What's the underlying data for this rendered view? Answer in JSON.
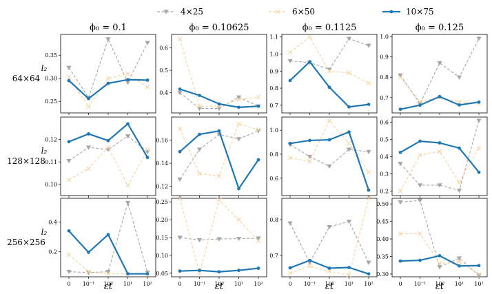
{
  "chart_data": {
    "type": "line",
    "layout": "3x4 grid",
    "legend": {
      "placement": "top-center",
      "entries": [
        {
          "name": "4×25",
          "color": "#a6a6a6",
          "marker": "triangle-down",
          "linestyle": "dashed"
        },
        {
          "name": "6×50",
          "color": "#f5d49e",
          "marker": "x",
          "linestyle": "dashed"
        },
        {
          "name": "10×75",
          "color": "#1f77b4",
          "marker": "circle",
          "linestyle": "solid"
        }
      ]
    },
    "col_titles": [
      "ϕ₀ = 0.1",
      "ϕ₀ = 0.10625",
      "ϕ₀ = 0.1125",
      "ϕ₀ = 0.125"
    ],
    "row_labels": [
      {
        "metric": "l₂",
        "grid": "64×64"
      },
      {
        "metric": "l₂",
        "grid": "128×128"
      },
      {
        "metric": "l₂",
        "grid": "256×256"
      }
    ],
    "xlabel": "εt",
    "x_categories": [
      "0",
      "10⁻¹",
      "10⁰",
      "10¹",
      "10²"
    ],
    "panels": [
      {
        "row": 0,
        "col": 0,
        "ylim": [
          0.225,
          0.395
        ],
        "yticks": [
          "0.25",
          "0.30",
          "0.35"
        ],
        "ytick_values": [
          0.25,
          0.3,
          0.35
        ],
        "series": {
          "4×25": [
            0.323,
            0.258,
            0.385,
            0.291,
            0.377
          ],
          "6×50": [
            0.303,
            0.238,
            0.3,
            0.31,
            0.281
          ],
          "10×75": [
            0.295,
            0.256,
            0.289,
            0.297,
            0.296
          ]
        }
      },
      {
        "row": 0,
        "col": 1,
        "ylim": [
          0.31,
          0.66
        ],
        "yticks": [
          "0.4",
          "0.5",
          "0.6"
        ],
        "ytick_values": [
          0.4,
          0.5,
          0.6
        ],
        "series": {
          "4×25": [
            0.4,
            0.33,
            0.33,
            0.38,
            0.34
          ],
          "6×50": [
            0.64,
            0.34,
            0.34,
            0.37,
            0.38
          ],
          "10×75": [
            0.416,
            0.388,
            0.35,
            0.335,
            0.34
          ]
        }
      },
      {
        "row": 0,
        "col": 2,
        "ylim": [
          0.655,
          1.115
        ],
        "yticks": [
          "0.7",
          "0.8",
          "0.9",
          "1.0",
          "1.1"
        ],
        "ytick_values": [
          0.7,
          0.8,
          0.9,
          1.0,
          1.1
        ],
        "series": {
          "4×25": [
            0.96,
            0.95,
            0.91,
            1.09,
            1.05
          ],
          "6×50": [
            1.01,
            1.1,
            0.9,
            0.89,
            0.83
          ],
          "10×75": [
            0.845,
            0.955,
            0.805,
            0.69,
            0.705
          ]
        }
      },
      {
        "row": 0,
        "col": 3,
        "ylim": [
          0.625,
          1.01
        ],
        "yticks": [
          "0.7",
          "0.8",
          "0.9",
          "1.0"
        ],
        "ytick_values": [
          0.7,
          0.8,
          0.9,
          1.0
        ],
        "series": {
          "4×25": [
            0.81,
            0.67,
            0.87,
            0.8,
            0.99
          ],
          "6×50": [
            0.8,
            0.68,
            0.7,
            0.68,
            0.67
          ],
          "10×75": [
            0.643,
            0.663,
            0.705,
            0.664,
            0.678
          ]
        }
      },
      {
        "row": 1,
        "col": 0,
        "ylim": [
          0.095,
          0.13
        ],
        "yticks": [
          "0.10",
          "0.11",
          "0.12"
        ],
        "ytick_values": [
          0.1,
          0.11,
          0.12
        ],
        "series": {
          "4×25": [
            0.1105,
            0.1165,
            0.1155,
            0.1215,
            0.1145
          ],
          "6×50": [
            0.102,
            0.107,
            0.1165,
            0.0995,
            0.1155
          ],
          "10×75": [
            0.119,
            0.1225,
            0.1195,
            0.127,
            0.112
          ]
        }
      },
      {
        "row": 1,
        "col": 1,
        "ylim": [
          0.112,
          0.18
        ],
        "yticks": [
          "0.12",
          "0.14",
          "0.16"
        ],
        "ytick_values": [
          0.12,
          0.14,
          0.16
        ],
        "series": {
          "4×25": [
            0.126,
            0.152,
            0.165,
            0.161,
            0.168
          ],
          "6×50": [
            0.17,
            0.131,
            0.129,
            0.174,
            0.169
          ],
          "10×75": [
            0.15,
            0.165,
            0.168,
            0.118,
            0.143
          ]
        }
      },
      {
        "row": 1,
        "col": 2,
        "ylim": [
          0.455,
          1.11
        ],
        "yticks": [
          "0.6",
          "0.8",
          "1.0"
        ],
        "ytick_values": [
          0.6,
          0.8,
          1.0
        ],
        "series": {
          "4×25": [
            0.88,
            0.78,
            0.7,
            0.84,
            0.82
          ],
          "6×50": [
            0.77,
            0.74,
            1.08,
            0.89,
            0.65
          ],
          "10×75": [
            0.89,
            0.915,
            0.92,
            0.985,
            0.5
          ]
        }
      },
      {
        "row": 1,
        "col": 3,
        "ylim": [
          0.175,
          0.63
        ],
        "yticks": [
          "0.2",
          "0.3",
          "0.4",
          "0.5",
          "0.6"
        ],
        "ytick_values": [
          0.2,
          0.3,
          0.4,
          0.5,
          0.6
        ],
        "series": {
          "4×25": [
            0.36,
            0.235,
            0.235,
            0.205,
            0.61
          ],
          "6×50": [
            0.2,
            0.41,
            0.43,
            0.25,
            0.45
          ],
          "10×75": [
            0.425,
            0.49,
            0.48,
            0.45,
            0.31
          ]
        }
      },
      {
        "row": 2,
        "col": 0,
        "ylim": [
          0.03,
          0.56
        ],
        "yticks": [
          "0.2",
          "0.4"
        ],
        "ytick_values": [
          0.2,
          0.4
        ],
        "series": {
          "4×25": [
            0.065,
            0.058,
            0.065,
            0.53,
            0.06
          ],
          "6×50": [
            0.18,
            0.065,
            0.05,
            0.05,
            0.05
          ],
          "10×75": [
            0.34,
            0.195,
            0.315,
            0.05,
            0.05
          ]
        }
      },
      {
        "row": 2,
        "col": 1,
        "ylim": [
          0.04,
          0.26
        ],
        "yticks": [
          "0.05",
          "0.10",
          "0.15",
          "0.20",
          "0.25"
        ],
        "ytick_values": [
          0.05,
          0.1,
          0.15,
          0.2,
          0.25
        ],
        "series": {
          "4×25": [
            0.15,
            0.143,
            0.146,
            0.147,
            0.148
          ],
          "6×50": [
            0.265,
            0.05,
            0.255,
            0.2,
            0.14
          ],
          "10×75": [
            0.056,
            0.058,
            0.054,
            0.058,
            0.064
          ]
        }
      },
      {
        "row": 2,
        "col": 2,
        "ylim": [
          0.64,
          0.86
        ],
        "yticks": [
          "0.7",
          "0.8"
        ],
        "ytick_values": [
          0.7,
          0.8
        ],
        "series": {
          "4×25": [
            0.79,
            0.68,
            0.78,
            0.795,
            0.68
          ],
          "6×50": [
            0.65,
            0.67,
            0.655,
            0.645,
            0.86
          ],
          "10×75": [
            0.665,
            0.686,
            0.664,
            0.666,
            0.648
          ]
        }
      },
      {
        "row": 2,
        "col": 3,
        "ylim": [
          0.292,
          0.516
        ],
        "yticks": [
          "0.30",
          "0.35",
          "0.40",
          "0.45",
          "0.50"
        ],
        "ytick_values": [
          0.3,
          0.35,
          0.4,
          0.45,
          0.5
        ],
        "series": {
          "4×25": [
            0.505,
            0.51,
            0.32,
            0.345,
            0.296
          ],
          "6×50": [
            0.415,
            0.415,
            0.33,
            0.335,
            0.3
          ],
          "10×75": [
            0.337,
            0.339,
            0.352,
            0.323,
            0.324
          ]
        }
      }
    ]
  }
}
